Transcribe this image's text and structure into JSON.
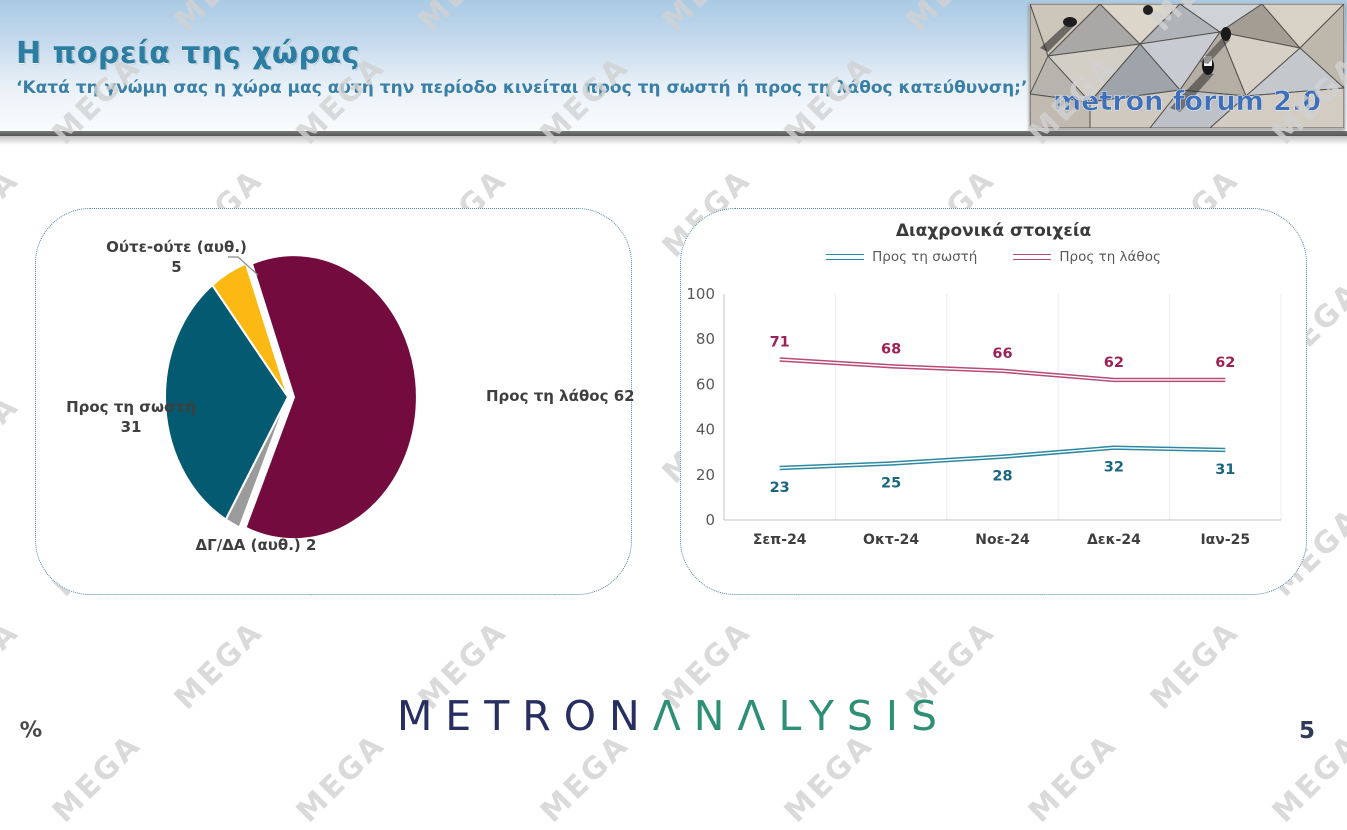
{
  "slide": {
    "title": "Η πορεία της χώρας",
    "subtitle": "‘Κατά τη γνώμη σας η χώρα μας αυτή την περίοδο κινείται προς τη σωστή ή προς τη λάθος κατεύθυνση;’",
    "page_number": "5",
    "footer_symbol": "%",
    "watermark_text": "MEGA"
  },
  "logo_badge": {
    "text": "metron forum 2.0"
  },
  "footer_logo": {
    "part1": "METRON",
    "part2": "ΛΝΛLYSIS"
  },
  "colors": {
    "title_teal": "#2c7da2",
    "pie_wrong": "#740b3f",
    "pie_right": "#045a70",
    "pie_neither": "#fcb813",
    "pie_dk": "#9b9b9b",
    "line_right": "#2c89a0",
    "line_wrong": "#b84a77",
    "panel_border": "#4a89a3"
  },
  "chart_data": [
    {
      "type": "pie",
      "slices": [
        {
          "label": "Προς τη λάθος",
          "value": 62,
          "color": "#740b3f",
          "explode": 6
        },
        {
          "label": "ΔΓ/ΔΑ (αυθ.)",
          "value": 2,
          "color": "#9b9b9b",
          "explode": 0
        },
        {
          "label": "Προς τη σωστή",
          "value": 31,
          "color": "#045a70",
          "explode": 0
        },
        {
          "label": "Ούτε-ούτε (αυθ.)",
          "value": 5,
          "color": "#fcb813",
          "explode": 0
        }
      ],
      "start_angle_deg": -20,
      "legend_position": "none",
      "data_labels": "outside"
    },
    {
      "type": "line",
      "title": "Διαχρονικά στοιχεία",
      "categories": [
        "Σεπ-24",
        "Οκτ-24",
        "Νοε-24",
        "Δεκ-24",
        "Ιαν-25"
      ],
      "series": [
        {
          "name": "Προς τη σωστή",
          "values": [
            23,
            25,
            28,
            32,
            31
          ],
          "color": "#2c89a0",
          "label_color": "#18677f",
          "label_position": "below"
        },
        {
          "name": "Προς τη λάθος",
          "values": [
            71,
            68,
            66,
            62,
            62
          ],
          "color": "#b84a77",
          "label_color": "#9c2156",
          "label_position": "above"
        }
      ],
      "ylim": [
        0,
        100
      ],
      "yticks": [
        0,
        20,
        40,
        60,
        80,
        100
      ],
      "grid": "vertical",
      "legend_position": "top"
    }
  ]
}
